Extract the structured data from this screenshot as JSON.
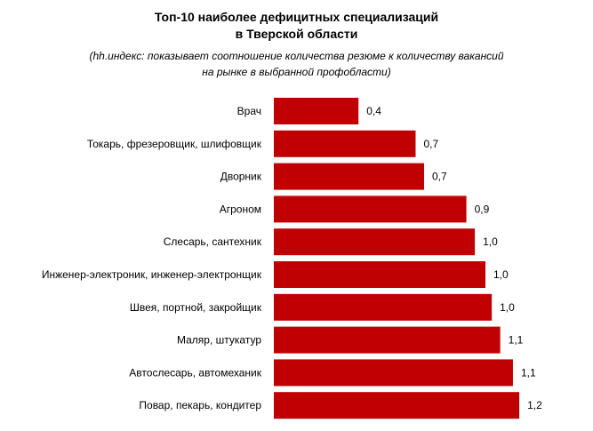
{
  "chart_data": {
    "type": "bar",
    "orientation": "horizontal",
    "title_lines": [
      "Топ-10 наиболее дефицитных специализаций",
      "в Тверской области"
    ],
    "subtitle_lines": [
      "(hh.индекс: показывает соотношение количества резюме к количеству вакансий",
      "на рынке в выбранной профобласти)"
    ],
    "categories": [
      "Врач",
      "Токарь, фрезеровщик, шлифовщик",
      "Дворник",
      "Агроном",
      "Слесарь, сантехник",
      "Инженер-электроник, инженер-электронщик",
      "Швея, портной, закройщик",
      "Маляр, штукатур",
      "Автослесарь, автомеханик",
      "Повар, пекарь, кондитер"
    ],
    "values": [
      0.4,
      0.7,
      0.7,
      0.9,
      1.0,
      1.0,
      1.0,
      1.1,
      1.1,
      1.2
    ],
    "value_labels": [
      "0,4",
      "0,7",
      "0,7",
      "0,9",
      "1,0",
      "1,0",
      "1,0",
      "1,1",
      "1,1",
      "1,2"
    ],
    "bar_values_exact": [
      0.4,
      0.67,
      0.71,
      0.91,
      0.95,
      1.0,
      1.03,
      1.07,
      1.13,
      1.16
    ],
    "xlim": [
      0,
      1.2
    ],
    "grid": false,
    "legend": "none",
    "bar_color": "#C00000"
  }
}
